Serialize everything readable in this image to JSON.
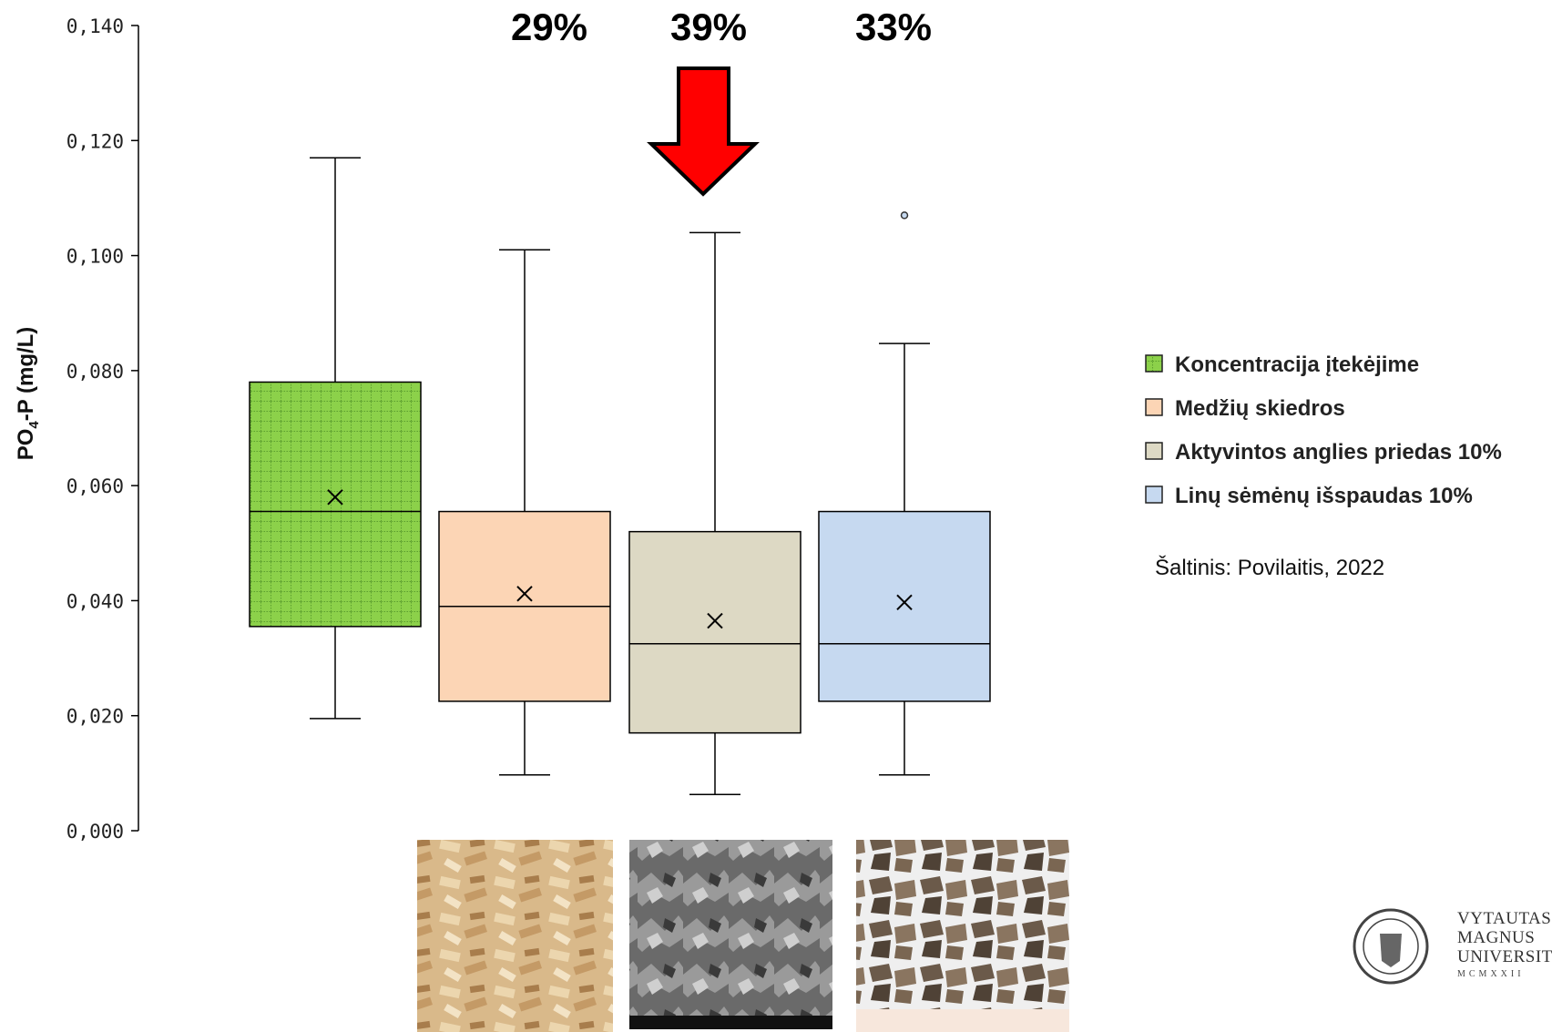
{
  "chart_data": {
    "type": "box",
    "ylabel": "PO",
    "ylabel_sub": "4",
    "ylabel_rest": "-P (mg/L)",
    "ylim": [
      0,
      0.14
    ],
    "yticks": [
      "0,000",
      "0,020",
      "0,040",
      "0,060",
      "0,080",
      "0,100",
      "0,120",
      "0,140"
    ],
    "ytick_values": [
      0,
      0.02,
      0.04,
      0.06,
      0.08,
      0.1,
      0.12,
      0.14
    ],
    "series": [
      {
        "name": "Koncentracija įtekėjime",
        "color": "#8cd14a",
        "pattern": "grid",
        "min": 0.0195,
        "q1": 0.0355,
        "median": 0.0555,
        "q3": 0.078,
        "max": 0.117,
        "mean": 0.058,
        "outliers": []
      },
      {
        "name": "Medžių skiedros",
        "color": "#fcd5b5",
        "min": 0.0097,
        "q1": 0.0225,
        "median": 0.039,
        "q3": 0.0555,
        "max": 0.101,
        "mean": 0.0412,
        "outliers": []
      },
      {
        "name": "Aktyvintos anglies priedas 10%",
        "color": "#ddd9c4",
        "min": 0.0063,
        "q1": 0.017,
        "median": 0.0325,
        "q3": 0.052,
        "max": 0.104,
        "mean": 0.0365,
        "outliers": []
      },
      {
        "name": "Linų sėmėnų išspaudas 10%",
        "color": "#c6d9f0",
        "min": 0.0097,
        "q1": 0.0225,
        "median": 0.0325,
        "q3": 0.0555,
        "max": 0.0847,
        "mean": 0.0397,
        "outliers": [
          0.107
        ]
      }
    ],
    "reductions": [
      "29%",
      "39%",
      "33%"
    ],
    "highlight": "Aktyvintos anglies priedas 10%",
    "legend_position": "right"
  },
  "source": "Šaltinis: Povilaitis, 2022",
  "logo": {
    "line1": "VYTAUTAS",
    "line2": "MAGNUS",
    "line3": "UNIVERSITY",
    "year": "MCMXXII"
  },
  "colors": {
    "arrow": "#ff0000",
    "axis": "#000000"
  }
}
